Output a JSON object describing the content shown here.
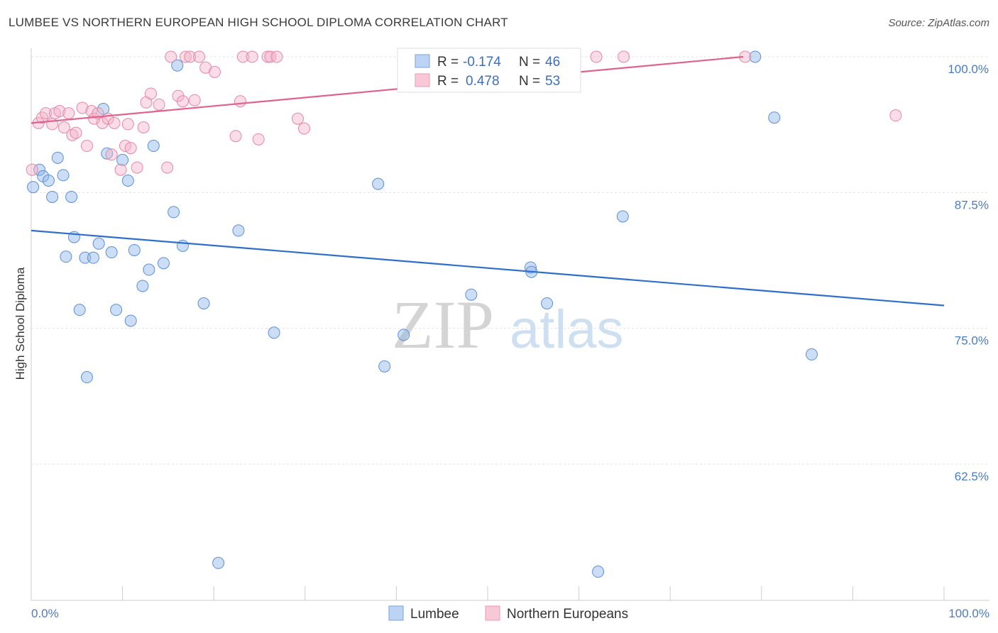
{
  "title": "LUMBEE VS NORTHERN EUROPEAN HIGH SCHOOL DIPLOMA CORRELATION CHART",
  "source": "Source: ZipAtlas.com",
  "watermark": {
    "zip": "ZIP",
    "atlas": "atlas"
  },
  "chart_data": {
    "type": "scatter",
    "ylabel": "High School Diploma",
    "xlim": [
      0,
      100
    ],
    "ylim": [
      51,
      100.5
    ],
    "x_tick_labels": [
      "0.0%",
      "100.0%"
    ],
    "y_ticks": [
      {
        "value": 100.0,
        "label": "100.0%"
      },
      {
        "value": 87.5,
        "label": "87.5%"
      },
      {
        "value": 75.0,
        "label": "75.0%"
      },
      {
        "value": 62.5,
        "label": "62.5%"
      }
    ],
    "legend": [
      {
        "r_label": "R =",
        "r_value": "-0.174",
        "n_label": "N =",
        "n_value": "46"
      },
      {
        "r_label": "R =",
        "r_value": "0.478",
        "n_label": "N =",
        "n_value": "53"
      }
    ],
    "series": [
      {
        "name": "Lumbee",
        "color": "#8fb5e8",
        "stroke": "#5b8fd6",
        "line_color": "#2f6fcc",
        "trend": {
          "x0": 0,
          "y0": 84.0,
          "x1": 100,
          "y1": 77.1
        },
        "points": [
          [
            0.2,
            88.0
          ],
          [
            0.9,
            89.6
          ],
          [
            1.3,
            89.0
          ],
          [
            1.9,
            88.6
          ],
          [
            2.3,
            87.1
          ],
          [
            2.9,
            90.7
          ],
          [
            3.5,
            89.1
          ],
          [
            4.4,
            87.1
          ],
          [
            4.7,
            83.4
          ],
          [
            3.8,
            81.6
          ],
          [
            5.3,
            76.7
          ],
          [
            6.1,
            70.5
          ],
          [
            5.9,
            81.5
          ],
          [
            6.8,
            81.5
          ],
          [
            7.4,
            82.8
          ],
          [
            7.9,
            95.2
          ],
          [
            8.3,
            91.1
          ],
          [
            8.8,
            82.0
          ],
          [
            9.3,
            76.7
          ],
          [
            10.0,
            90.5
          ],
          [
            10.6,
            88.6
          ],
          [
            10.9,
            75.7
          ],
          [
            11.3,
            82.2
          ],
          [
            12.2,
            78.9
          ],
          [
            12.9,
            80.4
          ],
          [
            13.4,
            91.8
          ],
          [
            14.5,
            81.0
          ],
          [
            15.6,
            85.7
          ],
          [
            16.0,
            99.2
          ],
          [
            16.6,
            82.6
          ],
          [
            18.9,
            77.3
          ],
          [
            20.5,
            53.4
          ],
          [
            22.7,
            84.0
          ],
          [
            26.6,
            74.6
          ],
          [
            38.0,
            88.3
          ],
          [
            38.7,
            71.5
          ],
          [
            40.8,
            74.4
          ],
          [
            48.2,
            78.1
          ],
          [
            54.7,
            80.6
          ],
          [
            54.8,
            80.2
          ],
          [
            56.5,
            77.3
          ],
          [
            64.8,
            85.3
          ],
          [
            62.1,
            52.6
          ],
          [
            79.3,
            100.0
          ],
          [
            81.4,
            94.4
          ],
          [
            85.5,
            72.6
          ]
        ]
      },
      {
        "name": "Northern Europeans",
        "color": "#f5b3c8",
        "stroke": "#e687a8",
        "line_color": "#e0628e",
        "trend": {
          "x0": 0,
          "y0": 93.9,
          "x1": 78,
          "y1": 100.0
        },
        "points": [
          [
            0.1,
            89.6
          ],
          [
            0.8,
            93.9
          ],
          [
            1.2,
            94.4
          ],
          [
            1.6,
            94.8
          ],
          [
            2.3,
            93.8
          ],
          [
            2.6,
            94.8
          ],
          [
            3.1,
            95.0
          ],
          [
            3.6,
            93.5
          ],
          [
            4.1,
            94.8
          ],
          [
            4.5,
            92.8
          ],
          [
            4.9,
            93.0
          ],
          [
            5.6,
            95.3
          ],
          [
            6.1,
            91.8
          ],
          [
            6.6,
            95.0
          ],
          [
            6.9,
            94.3
          ],
          [
            7.3,
            94.8
          ],
          [
            7.8,
            93.9
          ],
          [
            8.4,
            94.3
          ],
          [
            8.8,
            91.0
          ],
          [
            9.1,
            93.9
          ],
          [
            9.8,
            89.6
          ],
          [
            10.3,
            91.8
          ],
          [
            10.6,
            93.8
          ],
          [
            10.9,
            91.6
          ],
          [
            11.6,
            89.8
          ],
          [
            12.3,
            93.5
          ],
          [
            12.6,
            95.8
          ],
          [
            13.1,
            96.6
          ],
          [
            14.0,
            95.6
          ],
          [
            14.9,
            89.8
          ],
          [
            15.3,
            100.0
          ],
          [
            16.1,
            96.4
          ],
          [
            16.6,
            95.9
          ],
          [
            16.9,
            100.0
          ],
          [
            17.4,
            100.0
          ],
          [
            17.9,
            96.0
          ],
          [
            18.4,
            100.0
          ],
          [
            19.1,
            99.0
          ],
          [
            20.1,
            98.6
          ],
          [
            22.4,
            92.7
          ],
          [
            22.9,
            95.9
          ],
          [
            23.2,
            100.0
          ],
          [
            24.2,
            100.0
          ],
          [
            24.9,
            92.4
          ],
          [
            25.9,
            100.0
          ],
          [
            26.2,
            100.0
          ],
          [
            26.9,
            100.0
          ],
          [
            29.2,
            94.3
          ],
          [
            29.9,
            93.4
          ],
          [
            61.9,
            100.0
          ],
          [
            64.9,
            100.0
          ],
          [
            78.2,
            100.0
          ],
          [
            94.7,
            94.6
          ]
        ]
      }
    ]
  }
}
